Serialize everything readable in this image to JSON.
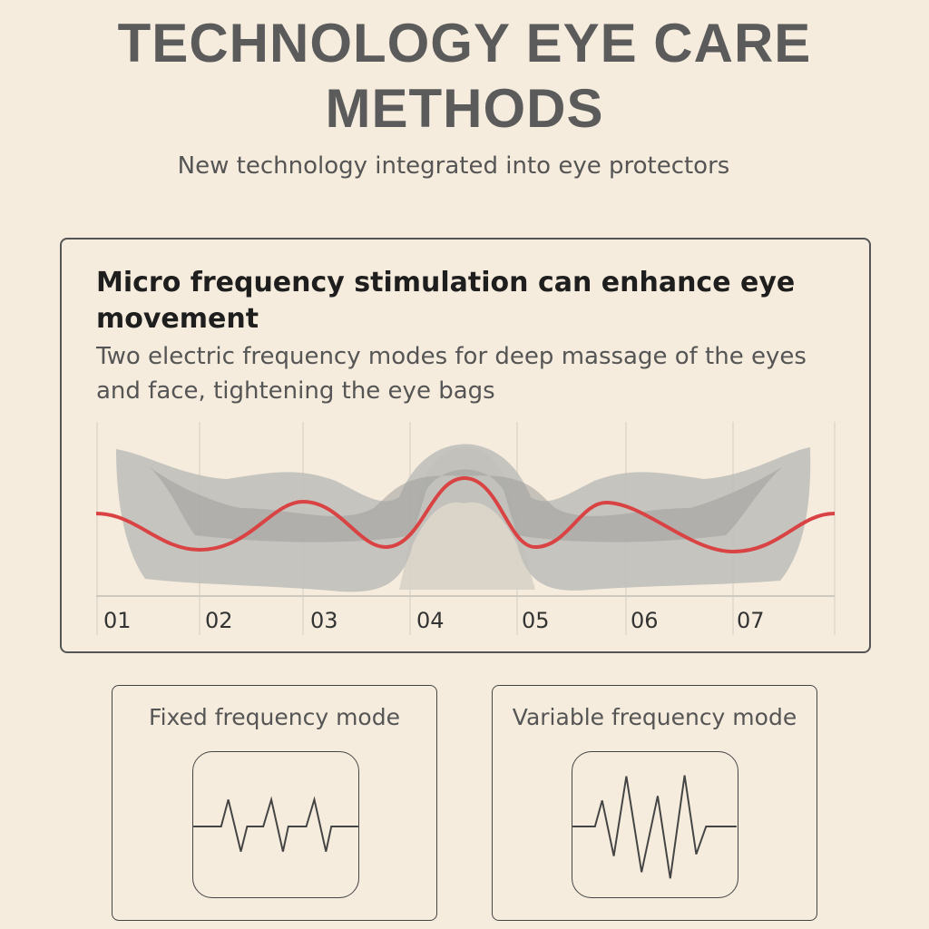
{
  "header": {
    "title_line1": "TECHNOLOGY EYE CARE",
    "title_line2": "METHODS",
    "subtitle": "New technology integrated into eye protectors"
  },
  "feature_card": {
    "heading": "Micro frequency stimulation can enhance eye movement",
    "description": "Two electric frequency modes for deep massage of the eyes and face, tightening the eye bags",
    "axis_labels": [
      "01",
      "02",
      "03",
      "04",
      "05",
      "06",
      "07"
    ],
    "wave_color": "#d94343",
    "mask_color": "#a9a9a6"
  },
  "modes": [
    {
      "label": "Fixed frequency mode",
      "icon": "fixed-waveform-icon"
    },
    {
      "label": "Variable frequency mode",
      "icon": "variable-waveform-icon"
    }
  ]
}
